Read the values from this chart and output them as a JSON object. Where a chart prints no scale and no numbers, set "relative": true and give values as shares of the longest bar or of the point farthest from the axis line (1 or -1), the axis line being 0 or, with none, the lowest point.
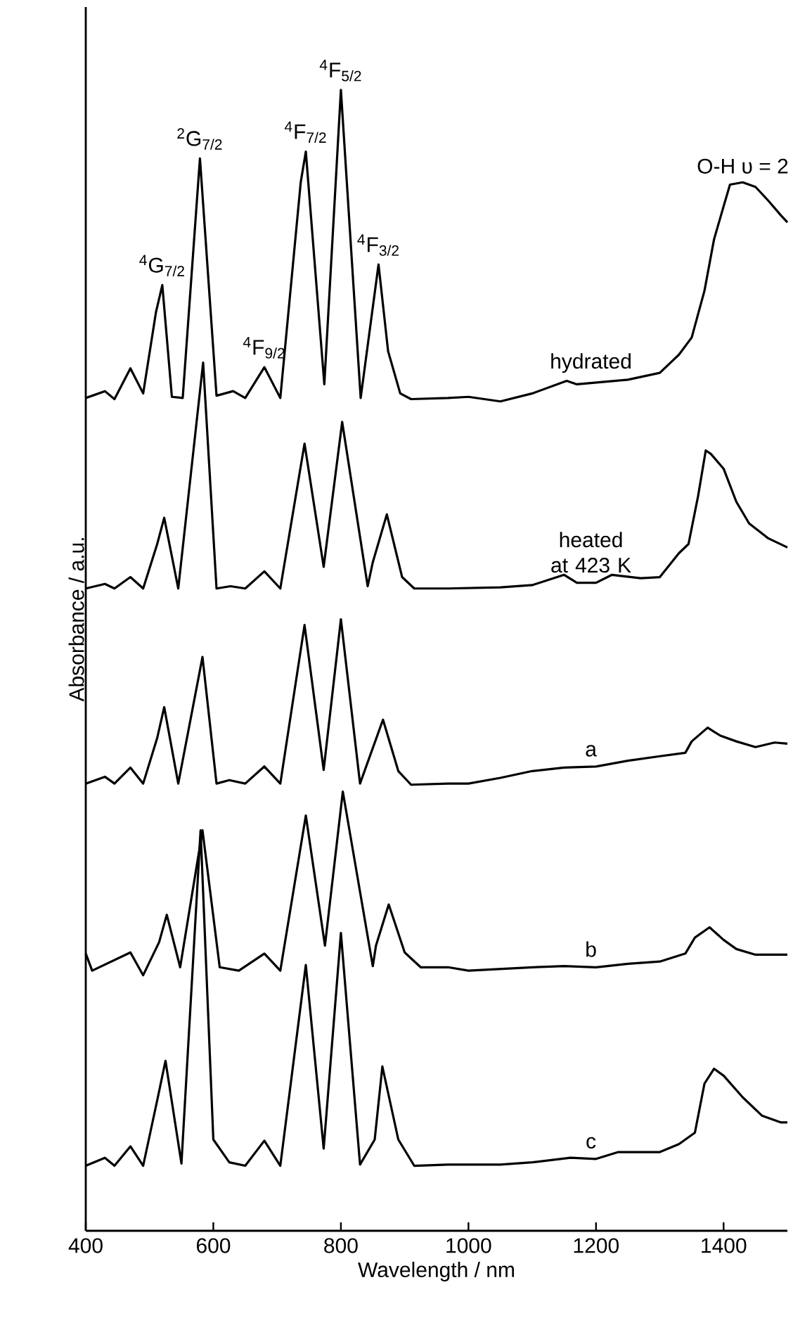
{
  "chart_data": {
    "type": "line",
    "relative": true,
    "xlabel": "Wavelength / nm",
    "ylabel": "Absorbance / a.u.",
    "xlim": [
      400,
      1500
    ],
    "xticks": [
      400,
      600,
      800,
      1000,
      1200,
      1400
    ],
    "legend": false,
    "grid": false,
    "marker": "none",
    "line_style": "solid",
    "series": [
      {
        "name": "hydrated",
        "color": "#000000",
        "x": [
          400,
          430,
          445,
          470,
          490,
          510,
          520,
          535,
          552,
          579,
          605,
          631,
          650,
          680,
          705,
          737,
          745,
          774,
          800,
          831,
          859,
          874,
          893,
          910,
          968,
          1000,
          1050,
          1100,
          1154,
          1170,
          1250,
          1300,
          1330,
          1350,
          1370,
          1385,
          1400,
          1410,
          1430,
          1450,
          1470,
          1490,
          1500
        ],
        "values": [
          0.73,
          0.736,
          0.729,
          0.756,
          0.734,
          0.805,
          0.829,
          0.731,
          0.73,
          0.94,
          0.732,
          0.736,
          0.73,
          0.757,
          0.73,
          0.919,
          0.946,
          0.742,
          1.0,
          0.73,
          0.847,
          0.771,
          0.734,
          0.729,
          0.73,
          0.731,
          0.727,
          0.734,
          0.745,
          0.742,
          0.746,
          0.752,
          0.768,
          0.783,
          0.824,
          0.869,
          0.898,
          0.917,
          0.919,
          0.915,
          0.903,
          0.89,
          0.884
        ]
      },
      {
        "name": "heated at 423 K",
        "color": "#000000",
        "x": [
          400,
          430,
          445,
          470,
          490,
          512,
          523,
          545,
          584,
          605,
          627,
          650,
          680,
          705,
          743,
          773,
          802,
          842,
          850,
          872,
          896,
          915,
          968,
          1050,
          1100,
          1150,
          1170,
          1200,
          1225,
          1270,
          1300,
          1330,
          1345,
          1360,
          1372,
          1380,
          1400,
          1420,
          1440,
          1470,
          1500
        ],
        "values": [
          0.563,
          0.567,
          0.563,
          0.573,
          0.563,
          0.602,
          0.625,
          0.563,
          0.761,
          0.563,
          0.565,
          0.563,
          0.578,
          0.563,
          0.69,
          0.582,
          0.709,
          0.565,
          0.586,
          0.628,
          0.573,
          0.563,
          0.563,
          0.564,
          0.566,
          0.575,
          0.568,
          0.568,
          0.575,
          0.572,
          0.573,
          0.594,
          0.602,
          0.644,
          0.684,
          0.681,
          0.668,
          0.639,
          0.62,
          0.607,
          0.599
        ]
      },
      {
        "name": "a",
        "color": "#000000",
        "x": [
          400,
          430,
          445,
          470,
          490,
          512,
          523,
          545,
          583,
          605,
          625,
          650,
          680,
          705,
          743,
          773,
          800,
          830,
          866,
          890,
          910,
          968,
          1000,
          1050,
          1100,
          1150,
          1200,
          1250,
          1300,
          1340,
          1350,
          1375,
          1395,
          1420,
          1450,
          1480,
          1500
        ],
        "values": [
          0.392,
          0.398,
          0.392,
          0.406,
          0.392,
          0.432,
          0.459,
          0.392,
          0.503,
          0.392,
          0.395,
          0.392,
          0.407,
          0.392,
          0.531,
          0.404,
          0.536,
          0.392,
          0.448,
          0.403,
          0.391,
          0.392,
          0.392,
          0.397,
          0.403,
          0.406,
          0.407,
          0.412,
          0.416,
          0.419,
          0.429,
          0.441,
          0.434,
          0.429,
          0.424,
          0.428,
          0.427
        ]
      },
      {
        "name": "b",
        "color": "#000000",
        "x": [
          400,
          410,
          470,
          490,
          515,
          527,
          548,
          583,
          610,
          640,
          680,
          705,
          745,
          775,
          803,
          850,
          855,
          875,
          900,
          925,
          968,
          1000,
          1100,
          1150,
          1200,
          1250,
          1300,
          1340,
          1355,
          1378,
          1400,
          1420,
          1450,
          1500
        ],
        "values": [
          0.243,
          0.228,
          0.244,
          0.224,
          0.253,
          0.277,
          0.231,
          0.351,
          0.231,
          0.228,
          0.243,
          0.228,
          0.364,
          0.25,
          0.385,
          0.232,
          0.25,
          0.286,
          0.244,
          0.231,
          0.231,
          0.228,
          0.231,
          0.232,
          0.231,
          0.234,
          0.236,
          0.243,
          0.257,
          0.266,
          0.255,
          0.247,
          0.242,
          0.242
        ]
      },
      {
        "name": "c",
        "color": "#000000",
        "x": [
          400,
          430,
          445,
          470,
          490,
          513,
          525,
          550,
          580,
          600,
          625,
          650,
          680,
          705,
          745,
          773,
          800,
          830,
          853,
          865,
          890,
          915,
          968,
          1050,
          1100,
          1160,
          1200,
          1235,
          1300,
          1330,
          1355,
          1370,
          1385,
          1400,
          1430,
          1460,
          1490,
          1500
        ],
        "values": [
          0.057,
          0.064,
          0.057,
          0.074,
          0.057,
          0.117,
          0.149,
          0.059,
          0.351,
          0.08,
          0.06,
          0.057,
          0.079,
          0.057,
          0.233,
          0.072,
          0.261,
          0.058,
          0.08,
          0.144,
          0.08,
          0.057,
          0.058,
          0.058,
          0.06,
          0.064,
          0.063,
          0.069,
          0.069,
          0.076,
          0.086,
          0.129,
          0.142,
          0.136,
          0.117,
          0.101,
          0.095,
          0.095
        ]
      }
    ],
    "annotations": [
      {
        "text": "$^{4}$G$_{7/2}$",
        "x": 520,
        "y": 0.829
      },
      {
        "text": "$^{2}$G$_{7/2}$",
        "x": 579,
        "y": 0.94
      },
      {
        "text": "$^{4}$F$_{9/2}$",
        "x": 680,
        "y": 0.757
      },
      {
        "text": "$^{4}$F$_{7/2}$",
        "x": 745,
        "y": 0.946
      },
      {
        "text": "$^{4}$F$_{5/2}$",
        "x": 800,
        "y": 1.0
      },
      {
        "text": "$^{4}$F$_{3/2}$",
        "x": 859,
        "y": 0.847
      },
      {
        "text": "O-H υ = 2",
        "x": 1430,
        "y": 0.919
      }
    ]
  }
}
